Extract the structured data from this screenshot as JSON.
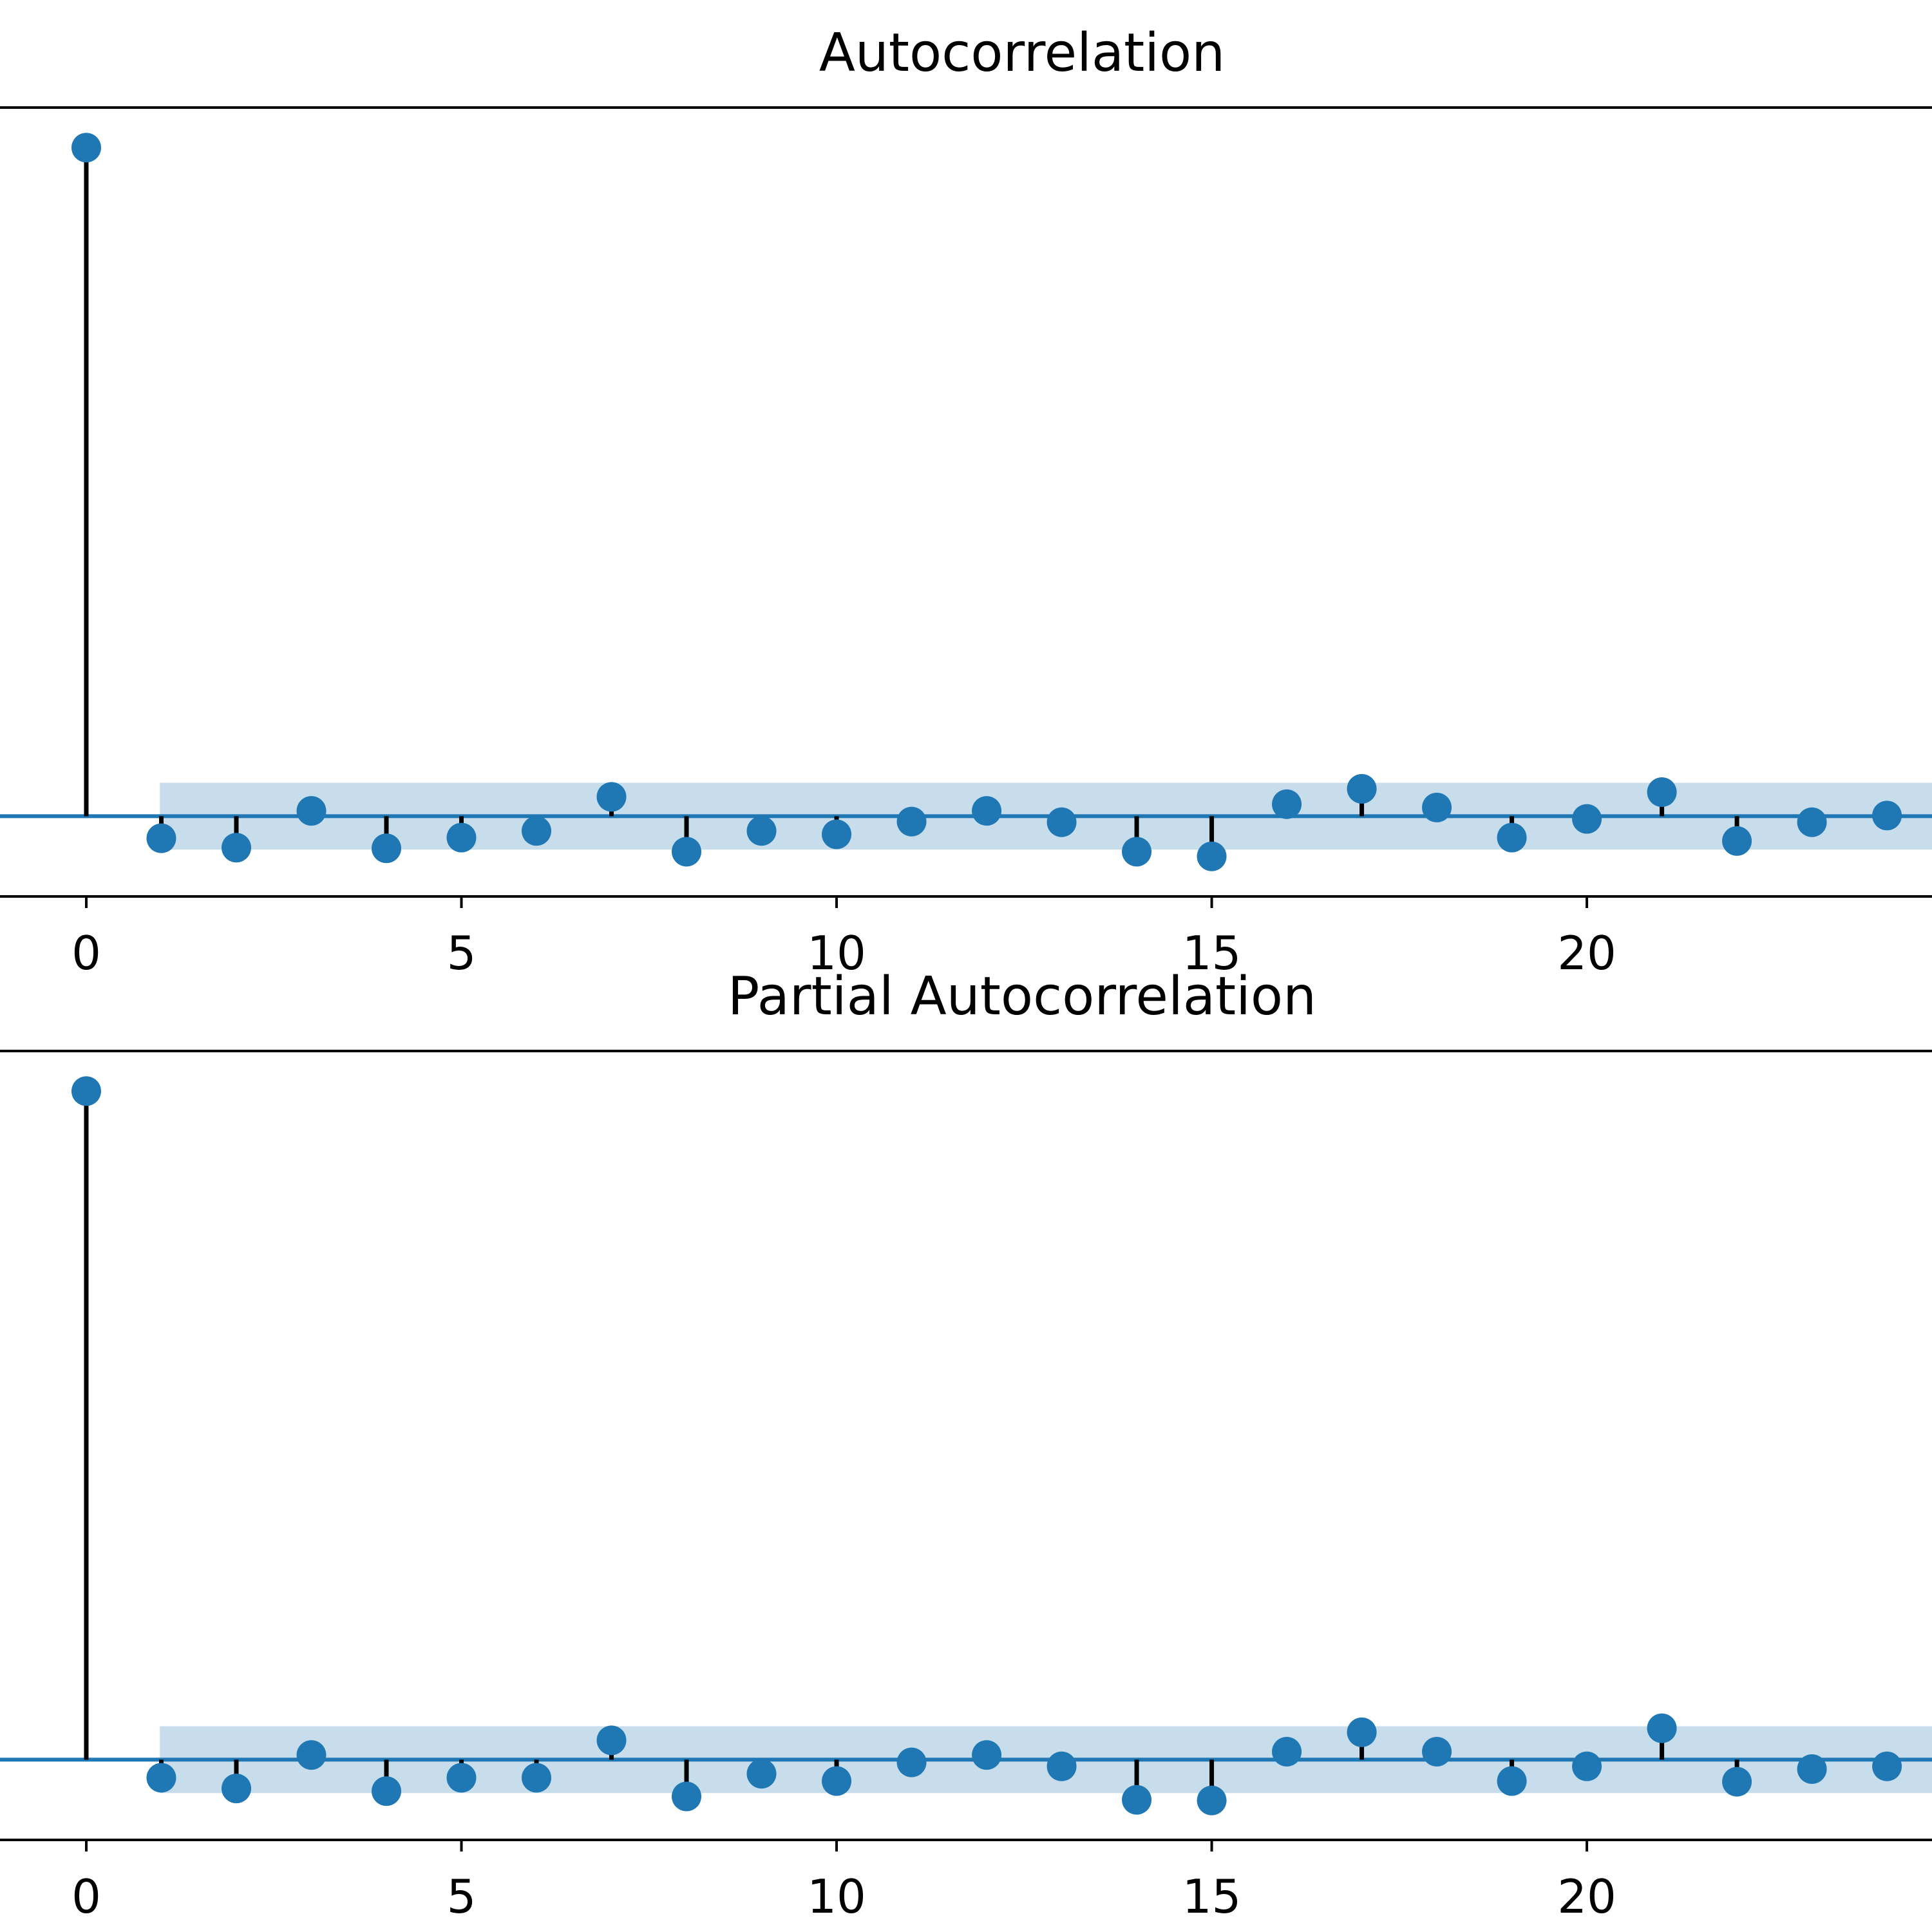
{
  "chart_data": [
    {
      "type": "stem",
      "title": "Autocorrelation",
      "xlabel": "",
      "ylabel": "",
      "xlim": [
        -1.15,
        24.6
      ],
      "ylim": [
        -0.12,
        1.06
      ],
      "xticks": [
        0,
        5,
        10,
        15,
        20
      ],
      "tick_labels": [
        "0",
        "5",
        "10",
        "15",
        "20"
      ],
      "grid": false,
      "confidence_band": {
        "upper": 0.05,
        "lower": -0.05,
        "from_lag": 1
      },
      "lags": [
        0,
        1,
        2,
        3,
        4,
        5,
        6,
        7,
        8,
        9,
        10,
        11,
        12,
        13,
        14,
        15,
        16,
        17,
        18,
        19,
        20,
        21,
        22,
        23,
        24
      ],
      "values": [
        1.0,
        -0.033,
        -0.047,
        0.008,
        -0.048,
        -0.032,
        -0.022,
        0.029,
        -0.053,
        -0.022,
        -0.027,
        -0.008,
        0.008,
        -0.009,
        -0.053,
        -0.06,
        0.018,
        0.041,
        0.013,
        -0.032,
        -0.004,
        0.036,
        -0.037,
        -0.009,
        0.001
      ]
    },
    {
      "type": "stem",
      "title": "Partial Autocorrelation",
      "xlabel": "",
      "ylabel": "",
      "xlim": [
        -1.15,
        24.6
      ],
      "ylim": [
        -0.12,
        1.06
      ],
      "xticks": [
        0,
        5,
        10,
        15,
        20
      ],
      "tick_labels": [
        "0",
        "5",
        "10",
        "15",
        "20"
      ],
      "grid": false,
      "confidence_band": {
        "upper": 0.05,
        "lower": -0.05,
        "from_lag": 1
      },
      "lags": [
        0,
        1,
        2,
        3,
        4,
        5,
        6,
        7,
        8,
        9,
        10,
        11,
        12,
        13,
        14,
        15,
        16,
        17,
        18,
        19,
        20,
        21,
        22,
        23,
        24
      ],
      "values": [
        1.0,
        -0.027,
        -0.043,
        0.007,
        -0.047,
        -0.027,
        -0.027,
        0.029,
        -0.055,
        -0.021,
        -0.032,
        -0.004,
        0.007,
        -0.01,
        -0.06,
        -0.061,
        0.012,
        0.041,
        0.012,
        -0.032,
        -0.01,
        0.047,
        -0.033,
        -0.014,
        -0.01
      ]
    }
  ],
  "colors": {
    "marker": "#1f77b4",
    "band": "#1f77b4",
    "stem": "#000000",
    "axis": "#000000"
  }
}
